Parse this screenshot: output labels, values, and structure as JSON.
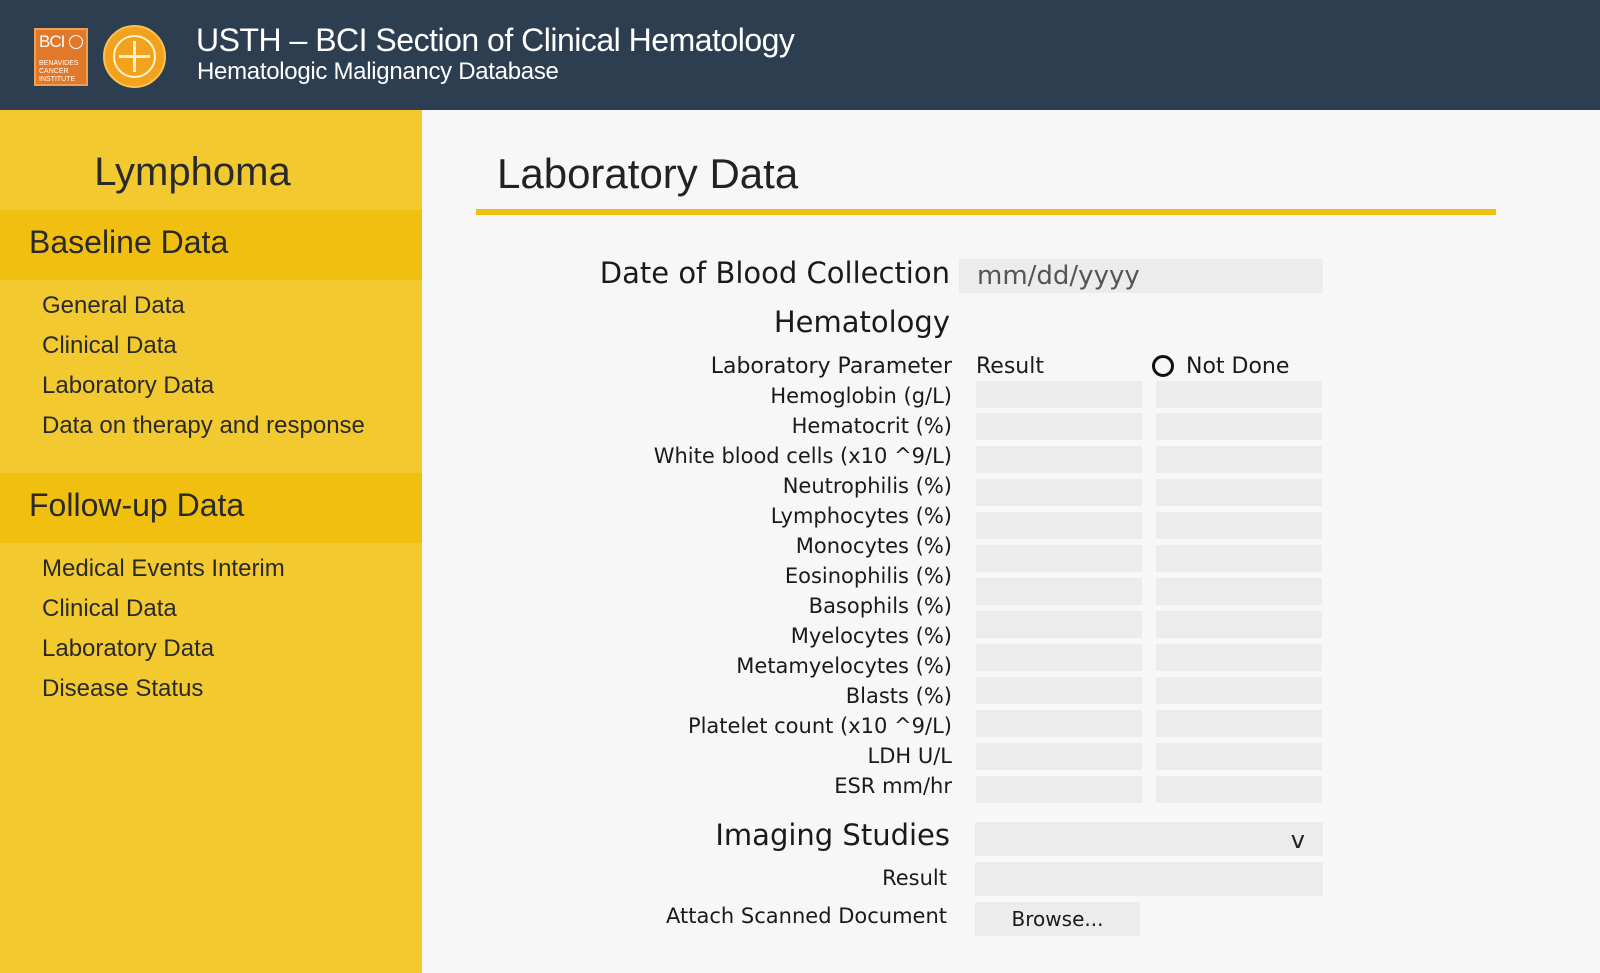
{
  "header": {
    "logo_text": "BCI",
    "logo_lines": [
      "BENAVIDES",
      "CANCER",
      "INSTITUTE"
    ],
    "title": "USTH – BCI Section of Clinical Hematology",
    "subtitle": "Hematologic Malignancy Database"
  },
  "sidebar": {
    "title": "Lymphoma",
    "baseline_section": "Baseline Data",
    "baseline_items": [
      "General Data",
      "Clinical Data",
      "Laboratory Data",
      "Data on therapy and response"
    ],
    "followup_section": "Follow-up Data",
    "followup_items": [
      "Medical Events Interim",
      "Clinical Data",
      "Laboratory Data",
      "Disease Status"
    ]
  },
  "main": {
    "title": "Laboratory Data",
    "date_label": "Date of Blood Collection",
    "date_placeholder": "mm/dd/yyyy",
    "hematology_label": "Hematology",
    "parameter_header": "Laboratory Parameter",
    "result_header": "Result",
    "not_done_label": "Not Done",
    "parameters": [
      "Hemoglobin (g/L)",
      "Hematocrit (%)",
      "White blood cells (x10 ^9/L)",
      "Neutrophilis (%)",
      "Lymphocytes (%)",
      "Monocytes (%)",
      "Eosinophilis (%)",
      "Basophils (%)",
      "Myelocytes (%)",
      "Metamyelocytes (%)",
      "Blasts (%)",
      "Platelet count (x10 ^9/L)",
      "LDH U/L",
      "ESR mm/hr"
    ],
    "imaging_label": "Imaging Studies",
    "imaging_chevron": "v",
    "imaging_result_label": "Result",
    "attach_label": "Attach Scanned Document",
    "browse_label": "Browse..."
  }
}
